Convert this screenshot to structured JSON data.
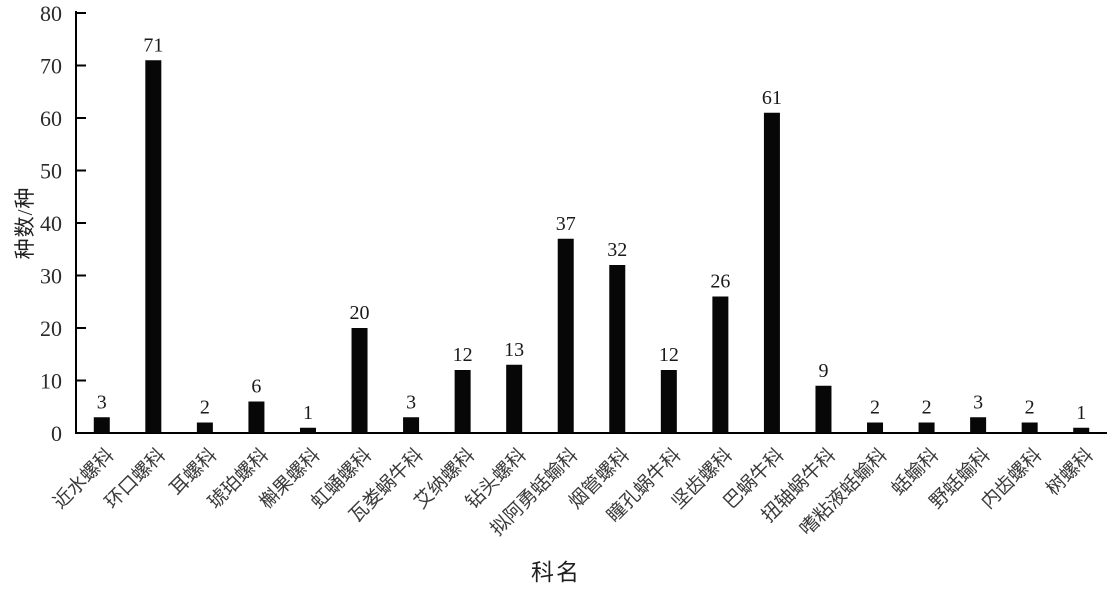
{
  "chart_data": {
    "type": "bar",
    "title": "",
    "xlabel": "科名",
    "ylabel": "种数/种",
    "ylim": [
      0,
      80
    ],
    "yticks": [
      0,
      10,
      20,
      30,
      40,
      50,
      60,
      70,
      80
    ],
    "grid": false,
    "legend_position": "none",
    "bar_color": "#070707",
    "categories": [
      "近水螺科",
      "环口螺科",
      "耳螺科",
      "琥珀螺科",
      "槲果螺科",
      "虹蛹螺科",
      "瓦娄蜗牛科",
      "艾纳螺科",
      "钻头螺科",
      "拟阿勇蛞蝓科",
      "烟管螺科",
      "瞳孔蜗牛科",
      "坚齿螺科",
      "巴蜗牛科",
      "扭轴蜗牛科",
      "嗜粘液蛞蝓科",
      "蛞蝓科",
      "野蛞蝓科",
      "内齿螺科",
      "树螺科"
    ],
    "values": [
      3,
      71,
      2,
      6,
      1,
      20,
      3,
      12,
      13,
      37,
      32,
      12,
      26,
      61,
      9,
      2,
      2,
      3,
      2,
      1
    ]
  },
  "colors": {
    "background": "#ffffff",
    "axis": "#000000",
    "tick_label": "#2a2a2a",
    "value_label": "#1a1a1a",
    "category_label": "#3a3a3a"
  }
}
